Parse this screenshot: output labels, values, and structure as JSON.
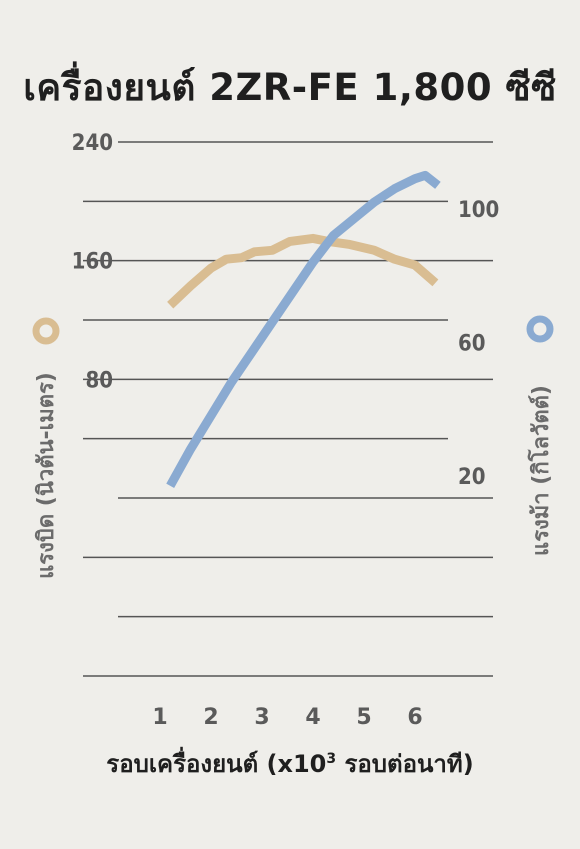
{
  "title": "เครื่องยนต์ 2ZR-FE 1,800 ซีซี",
  "colors": {
    "background": "#efeeea",
    "torque": "#d9bd92",
    "power": "#8aaad1",
    "grid": "#555555",
    "tick_text": "#5a5a5a"
  },
  "chart_data": {
    "type": "line",
    "xlabel_main": "รอบเครื่องยนต์ (x10",
    "xlabel_sup": "3",
    "xlabel_tail": " รอบต่อนาที)",
    "x_ticks": [
      "1",
      "2",
      "3",
      "4",
      "5",
      "6"
    ],
    "xlim": [
      0.2,
      6.7
    ],
    "y_left": {
      "label": "แรงบิด (นิวตัน-เมตร)",
      "ticks": [
        80,
        160,
        240
      ],
      "lim": [
        -120,
        240
      ]
    },
    "y_right": {
      "label": "แรงม้า (กิโลวัตต์)",
      "ticks": [
        20,
        60,
        100
      ],
      "lim": [
        -40,
        120
      ]
    },
    "series": [
      {
        "name": "torque",
        "axis": "left",
        "x": [
          1.2,
          1.6,
          2.0,
          2.3,
          2.6,
          2.85,
          3.2,
          3.55,
          4.0,
          4.3,
          4.7,
          5.2,
          5.6,
          6.0,
          6.4
        ],
        "y": [
          130,
          143,
          155,
          161,
          162,
          166,
          167,
          173,
          175,
          173,
          171,
          167,
          161,
          157,
          145
        ]
      },
      {
        "name": "power",
        "axis": "right",
        "x": [
          1.2,
          1.6,
          2.0,
          2.4,
          2.8,
          3.2,
          3.6,
          4.0,
          4.4,
          4.8,
          5.2,
          5.6,
          6.0,
          6.2,
          6.45
        ],
        "y": [
          17,
          28,
          38,
          48,
          57,
          66,
          75,
          84,
          92,
          97,
          102,
          106,
          109,
          110,
          107
        ]
      }
    ]
  }
}
